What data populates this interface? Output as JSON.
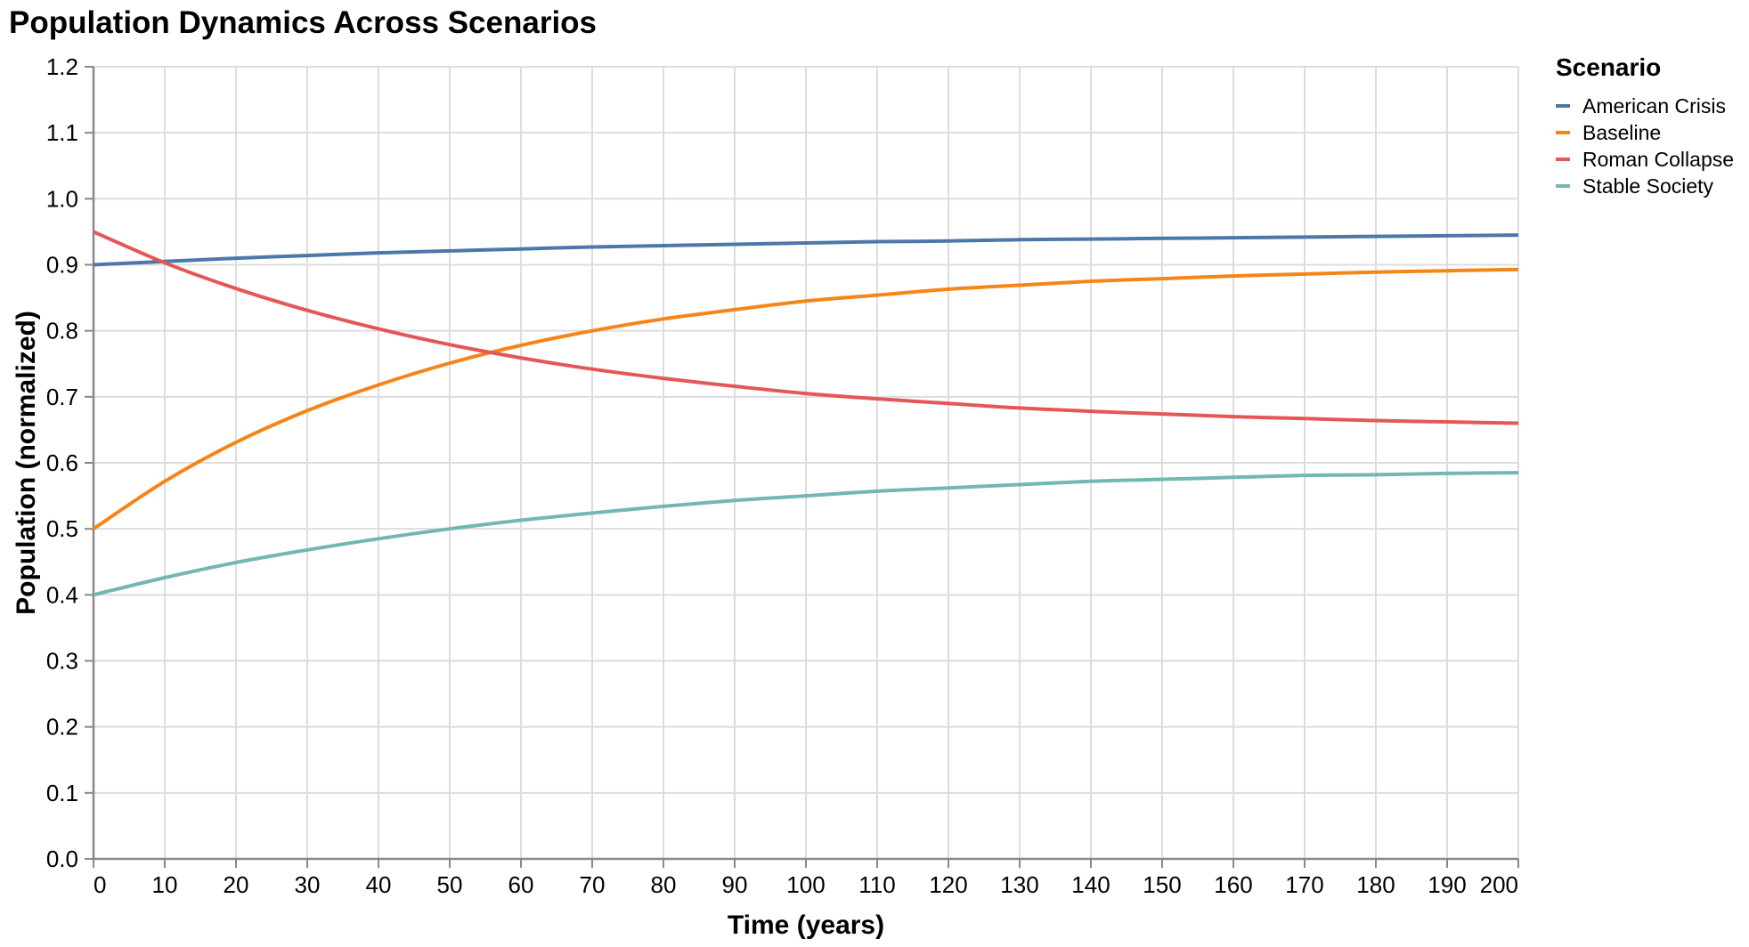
{
  "chart_data": {
    "type": "line",
    "title": "Population Dynamics Across Scenarios",
    "xlabel": "Time (years)",
    "ylabel": "Population (normalized)",
    "xlim": [
      0,
      200
    ],
    "ylim": [
      0,
      1.2
    ],
    "grid": true,
    "x_ticks": [
      0,
      10,
      20,
      30,
      40,
      50,
      60,
      70,
      80,
      90,
      100,
      110,
      120,
      130,
      140,
      150,
      160,
      170,
      180,
      190,
      200
    ],
    "y_tick_labels": [
      "0.0",
      "0.1",
      "0.2",
      "0.3",
      "0.4",
      "0.5",
      "0.6",
      "0.7",
      "0.8",
      "0.9",
      "1.0",
      "1.1",
      "1.2"
    ],
    "legend_title": "Scenario",
    "legend_position": "right",
    "axis_color": "#888888",
    "grid_color": "#dddddd",
    "line_width": 4,
    "x": [
      0,
      10,
      20,
      30,
      40,
      50,
      60,
      70,
      80,
      90,
      100,
      110,
      120,
      130,
      140,
      150,
      160,
      170,
      180,
      190,
      200
    ],
    "series": [
      {
        "name": "American Crisis",
        "color": "#4c78a8",
        "values": [
          0.9,
          0.905,
          0.91,
          0.914,
          0.918,
          0.921,
          0.924,
          0.927,
          0.929,
          0.931,
          0.933,
          0.935,
          0.936,
          0.938,
          0.939,
          0.94,
          0.941,
          0.942,
          0.943,
          0.944,
          0.945
        ]
      },
      {
        "name": "Baseline",
        "color": "#f58518",
        "values": [
          0.5,
          0.572,
          0.631,
          0.679,
          0.718,
          0.751,
          0.778,
          0.8,
          0.818,
          0.832,
          0.845,
          0.854,
          0.863,
          0.869,
          0.875,
          0.879,
          0.883,
          0.886,
          0.889,
          0.891,
          0.893
        ]
      },
      {
        "name": "Roman Collapse",
        "color": "#e45756",
        "values": [
          0.95,
          0.903,
          0.864,
          0.831,
          0.803,
          0.779,
          0.759,
          0.742,
          0.728,
          0.716,
          0.705,
          0.697,
          0.69,
          0.683,
          0.678,
          0.674,
          0.67,
          0.667,
          0.664,
          0.662,
          0.66
        ]
      },
      {
        "name": "Stable Society",
        "color": "#72b7b2",
        "values": [
          0.4,
          0.426,
          0.449,
          0.468,
          0.485,
          0.5,
          0.513,
          0.524,
          0.534,
          0.543,
          0.55,
          0.557,
          0.562,
          0.567,
          0.572,
          0.575,
          0.578,
          0.581,
          0.582,
          0.584,
          0.585
        ]
      }
    ]
  }
}
